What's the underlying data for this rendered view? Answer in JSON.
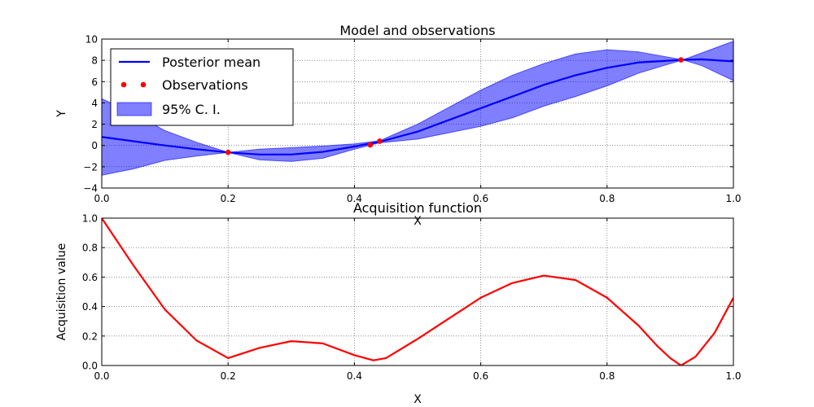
{
  "chart_data": [
    {
      "type": "line",
      "title": "Model and observations",
      "xlabel": "X",
      "ylabel": "Y",
      "xlim": [
        0,
        1
      ],
      "ylim": [
        -4,
        10
      ],
      "xticks": [
        "0.0",
        "0.2",
        "0.4",
        "0.6",
        "0.8",
        "1.0"
      ],
      "yticks": [
        "−4",
        "−2",
        "0",
        "2",
        "4",
        "6",
        "8",
        "10"
      ],
      "grid": true,
      "legend_position": "top-left",
      "legend": [
        "Posterior mean",
        "Observations",
        "95% C. I."
      ],
      "series": [
        {
          "name": "Posterior mean",
          "kind": "line",
          "color": "#0000ff",
          "x": [
            0,
            0.05,
            0.1,
            0.15,
            0.2,
            0.25,
            0.3,
            0.35,
            0.4,
            0.44,
            0.5,
            0.55,
            0.6,
            0.65,
            0.7,
            0.75,
            0.8,
            0.85,
            0.92,
            0.95,
            1.0
          ],
          "y": [
            0.8,
            0.4,
            0.0,
            -0.35,
            -0.65,
            -0.85,
            -0.85,
            -0.6,
            -0.1,
            0.35,
            1.3,
            2.4,
            3.5,
            4.6,
            5.7,
            6.6,
            7.3,
            7.8,
            8.05,
            8.1,
            7.9
          ]
        },
        {
          "name": "Observations",
          "kind": "scatter",
          "color": "#ff0000",
          "x": [
            0.2,
            0.425,
            0.44,
            0.917
          ],
          "y": [
            -0.65,
            0.05,
            0.4,
            8.05
          ]
        },
        {
          "name": "95% C. I.",
          "kind": "band",
          "color": "#0000ff",
          "x": [
            0,
            0.05,
            0.1,
            0.15,
            0.2,
            0.25,
            0.3,
            0.35,
            0.4,
            0.44,
            0.5,
            0.55,
            0.6,
            0.65,
            0.7,
            0.75,
            0.8,
            0.85,
            0.92,
            0.95,
            1.0
          ],
          "upper": [
            4.4,
            3.0,
            1.4,
            0.3,
            -0.65,
            -0.35,
            -0.2,
            -0.05,
            0.15,
            0.45,
            2.0,
            3.6,
            5.2,
            6.6,
            7.7,
            8.6,
            9.0,
            8.8,
            8.05,
            8.7,
            9.8
          ],
          "lower": [
            -2.8,
            -2.2,
            -1.4,
            -1.0,
            -0.65,
            -1.35,
            -1.5,
            -1.2,
            -0.35,
            0.25,
            0.6,
            1.2,
            1.8,
            2.6,
            3.7,
            4.6,
            5.6,
            6.8,
            8.05,
            7.5,
            6.1
          ]
        }
      ]
    },
    {
      "type": "line",
      "title": "Acquisition function",
      "xlabel": "X",
      "ylabel": "Acquisition value",
      "xlim": [
        0,
        1
      ],
      "ylim": [
        0,
        1
      ],
      "xticks": [
        "0.0",
        "0.2",
        "0.4",
        "0.6",
        "0.8",
        "1.0"
      ],
      "yticks": [
        "0.0",
        "0.2",
        "0.4",
        "0.6",
        "0.8",
        "1.0"
      ],
      "grid": true,
      "series": [
        {
          "kind": "line",
          "color": "#ff0000",
          "x": [
            0,
            0.05,
            0.1,
            0.15,
            0.2,
            0.25,
            0.3,
            0.35,
            0.4,
            0.43,
            0.45,
            0.5,
            0.55,
            0.6,
            0.65,
            0.7,
            0.75,
            0.8,
            0.85,
            0.88,
            0.9,
            0.917,
            0.94,
            0.97,
            1.0
          ],
          "y": [
            1.0,
            0.68,
            0.38,
            0.17,
            0.05,
            0.12,
            0.165,
            0.15,
            0.07,
            0.035,
            0.05,
            0.18,
            0.32,
            0.46,
            0.56,
            0.61,
            0.58,
            0.46,
            0.27,
            0.13,
            0.05,
            0.0,
            0.06,
            0.22,
            0.46
          ]
        }
      ]
    }
  ]
}
